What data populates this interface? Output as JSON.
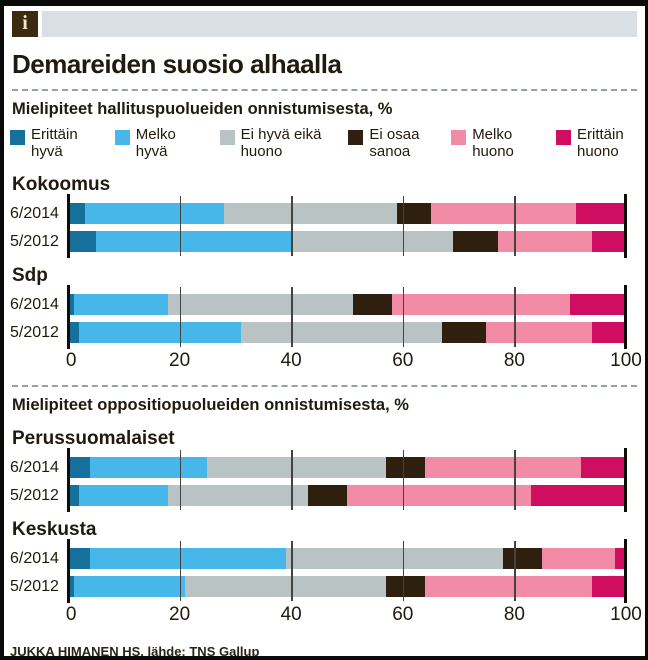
{
  "header": {
    "icon_glyph": "i"
  },
  "title": "Demareiden suosio alhaalla",
  "footer": {
    "credit": "JUKKA HIMANEN HS, lähde: TNS Gallup"
  },
  "legend": [
    {
      "label": "Erittäin hyvä",
      "color": "#15719b"
    },
    {
      "label": "Melko hyvä",
      "color": "#47b7e9"
    },
    {
      "label": "Ei hyvä eikä huono",
      "color": "#b9c3c4"
    },
    {
      "label": "Ei osaa sanoa",
      "color": "#2e1f0e"
    },
    {
      "label": "Melko huono",
      "color": "#f28ba6"
    },
    {
      "label": "Erittäin huono",
      "color": "#cf0e61"
    }
  ],
  "chart_data": {
    "type": "bar",
    "stacked": true,
    "orientation": "horizontal",
    "unit": "%",
    "segments": [
      "Erittäin hyvä",
      "Melko hyvä",
      "Ei hyvä eikä huono",
      "Ei osaa sanoa",
      "Melko huono",
      "Erittäin huono"
    ],
    "colors": [
      "#15719b",
      "#47b7e9",
      "#b9c3c4",
      "#2e1f0e",
      "#f28ba6",
      "#cf0e61"
    ],
    "axis": {
      "ticks": [
        0,
        20,
        40,
        60,
        80,
        100
      ],
      "min": 0,
      "max": 100,
      "gridlines": [
        20,
        40,
        60,
        80
      ]
    },
    "sections": [
      {
        "subtitle": "Mielipiteet hallituspuolueiden onnistumisesta, %",
        "groups": [
          {
            "name": "Kokoomus",
            "rows": [
              {
                "label": "6/2014",
                "values": [
                  3,
                  25,
                  31,
                  6,
                  26,
                  9
                ]
              },
              {
                "label": "5/2012",
                "values": [
                  5,
                  35,
                  29,
                  8,
                  17,
                  6
                ]
              }
            ]
          },
          {
            "name": "Sdp",
            "rows": [
              {
                "label": "6/2014",
                "values": [
                  1,
                  17,
                  33,
                  7,
                  32,
                  10
                ]
              },
              {
                "label": "5/2012",
                "values": [
                  2,
                  29,
                  36,
                  8,
                  19,
                  6
                ]
              }
            ]
          }
        ]
      },
      {
        "subtitle": "Mielipiteet oppositiopuolueiden onnistumisesta, %",
        "groups": [
          {
            "name": "Perussuomalaiset",
            "rows": [
              {
                "label": "6/2014",
                "values": [
                  4,
                  21,
                  32,
                  7,
                  28,
                  8
                ]
              },
              {
                "label": "5/2012",
                "values": [
                  2,
                  16,
                  25,
                  7,
                  33,
                  17
                ]
              }
            ]
          },
          {
            "name": "Keskusta",
            "rows": [
              {
                "label": "6/2014",
                "values": [
                  4,
                  35,
                  39,
                  7,
                  13,
                  2
                ]
              },
              {
                "label": "5/2012",
                "values": [
                  1,
                  20,
                  36,
                  7,
                  30,
                  6
                ]
              }
            ]
          }
        ]
      }
    ]
  }
}
